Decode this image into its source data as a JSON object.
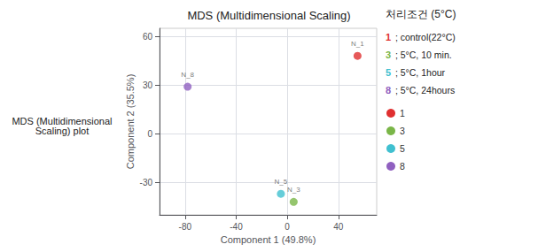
{
  "chart_data": {
    "type": "scatter",
    "title": "MDS (Multidimensional Scaling)",
    "xlabel": "Component 1 (49.8%)",
    "ylabel": "Component 2 (35.5%)",
    "xlim": [
      -100,
      70
    ],
    "ylim": [
      -50,
      65
    ],
    "xticks": [
      -80,
      -40,
      0,
      40
    ],
    "yticks": [
      -30,
      0,
      30,
      60
    ],
    "grid": true,
    "points": [
      {
        "x": 55,
        "y": 48,
        "color": "#e03030",
        "label": "N_1"
      },
      {
        "x": -78,
        "y": 29,
        "color": "#9060c0",
        "label": "N_8"
      },
      {
        "x": -5,
        "y": -37,
        "color": "#40c0d0",
        "label": "N_5"
      },
      {
        "x": 5,
        "y": -42,
        "color": "#7ab648",
        "label": "N_3"
      }
    ],
    "left_label": "MDS (Multidimensional\nScaling) plot",
    "legend_title": "처리조건 (5°C)",
    "legend_entries": [
      {
        "label": "1",
        "color": "#e03030",
        "text": " ; control(22°C)"
      },
      {
        "label": "3",
        "color": "#7ab648",
        "text": " ; 5°C, 10 min."
      },
      {
        "label": "5",
        "color": "#40c0d0",
        "text": " ; 5°C, 1hour"
      },
      {
        "label": "8",
        "color": "#9060c0",
        "text": " ; 5°C, 24hours"
      }
    ],
    "legend_dots": [
      {
        "label": "1",
        "color": "#e03030"
      },
      {
        "label": "3",
        "color": "#7ab648"
      },
      {
        "label": "5",
        "color": "#40c0d0"
      },
      {
        "label": "8",
        "color": "#9060c0"
      }
    ]
  }
}
